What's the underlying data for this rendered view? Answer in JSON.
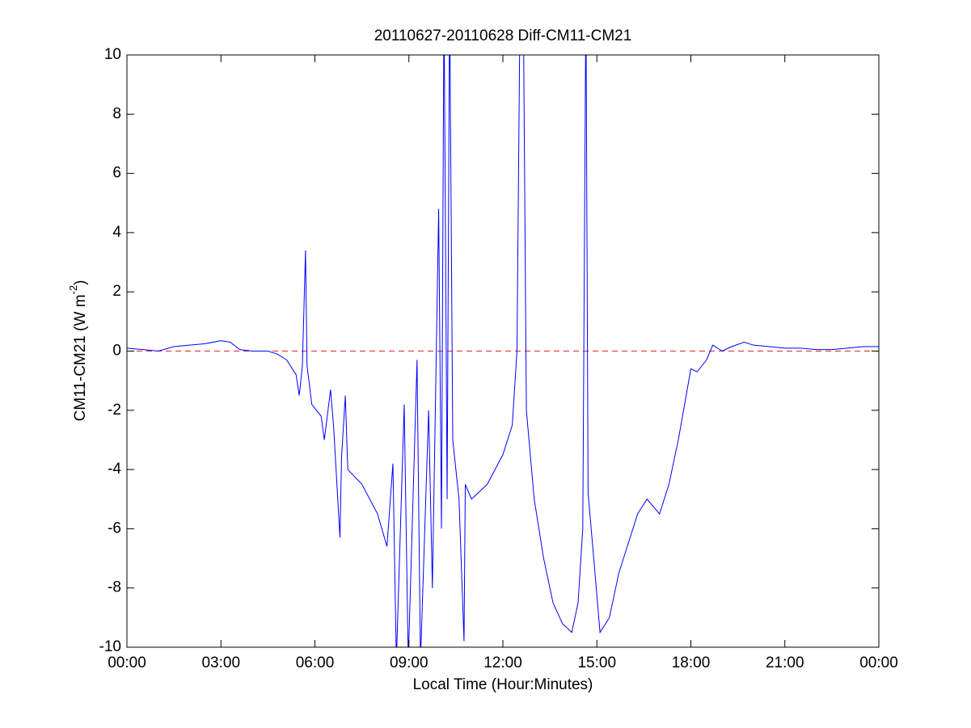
{
  "chart_data": {
    "type": "line",
    "title": "20110627-20110628 Diff-CM11-CM21",
    "xlabel": "Local Time (Hour:Minutes)",
    "ylabel": {
      "text": "CM11-CM21 (W m",
      "sup": "-2",
      "tail": ")"
    },
    "xlim": [
      0,
      24
    ],
    "xticks": [
      {
        "value": 0,
        "label": "00:00"
      },
      {
        "value": 3,
        "label": "03:00"
      },
      {
        "value": 6,
        "label": "06:00"
      },
      {
        "value": 9,
        "label": "09:00"
      },
      {
        "value": 12,
        "label": "12:00"
      },
      {
        "value": 15,
        "label": "15:00"
      },
      {
        "value": 18,
        "label": "18:00"
      },
      {
        "value": 21,
        "label": "21:00"
      },
      {
        "value": 24,
        "label": "00:00"
      }
    ],
    "ylim": [
      -10,
      10
    ],
    "yticks": [
      -10,
      -8,
      -6,
      -4,
      -2,
      0,
      2,
      4,
      6,
      8,
      10
    ],
    "reference_line": {
      "value": 0,
      "color": "#d62728"
    },
    "x": [
      0,
      0.5,
      1,
      1.5,
      2,
      2.5,
      3,
      3.3,
      3.6,
      4,
      4.5,
      4.8,
      5.1,
      5.4,
      5.5,
      5.6,
      5.7,
      5.75,
      5.9,
      6.2,
      6.3,
      6.5,
      6.6,
      6.8,
      6.85,
      6.97,
      7.05,
      7.5,
      8.0,
      8.3,
      8.49,
      8.6,
      8.85,
      8.98,
      9.26,
      9.37,
      9.63,
      9.75,
      9.95,
      10.04,
      10.12,
      10.22,
      10.3,
      10.4,
      10.6,
      10.76,
      10.8,
      11,
      11.5,
      12,
      12.3,
      12.45,
      12.55,
      12.65,
      12.75,
      13,
      13.3,
      13.6,
      13.9,
      14.2,
      14.4,
      14.55,
      14.65,
      14.72,
      14.9,
      15.1,
      15.4,
      15.7,
      16,
      16.3,
      16.6,
      17,
      17.3,
      17.6,
      17.85,
      18,
      18.2,
      18.5,
      18.7,
      19,
      19.3,
      19.7,
      20,
      20.5,
      21,
      21.5,
      22,
      22.5,
      23,
      23.5,
      24
    ],
    "series": [
      {
        "color": "#0000ff",
        "values": [
          0.1,
          0.05,
          0.0,
          0.15,
          0.2,
          0.25,
          0.35,
          0.3,
          0.05,
          0.0,
          0.0,
          -0.1,
          -0.3,
          -0.8,
          -1.5,
          -0.5,
          3.4,
          -0.5,
          -1.8,
          -2.2,
          -3.0,
          -1.3,
          -2.6,
          -6.3,
          -3.6,
          -1.5,
          -4.0,
          -4.5,
          -5.5,
          -6.6,
          -3.8,
          -10.5,
          -1.8,
          -10.5,
          -0.3,
          -10.5,
          -2,
          -8,
          4.8,
          -6,
          12,
          -5,
          12,
          -3,
          -5,
          -9.8,
          -4.5,
          -5,
          -4.5,
          -3.5,
          -2.5,
          0,
          12,
          12,
          -2,
          -5,
          -7,
          -8.5,
          -9.2,
          -9.5,
          -8.5,
          -6,
          12,
          -4.8,
          -7,
          -9.5,
          -9,
          -7.5,
          -6.5,
          -5.5,
          -5,
          -5.5,
          -4.5,
          -3,
          -1.5,
          -0.6,
          -0.7,
          -0.3,
          0.2,
          0.0,
          0.15,
          0.3,
          0.2,
          0.15,
          0.1,
          0.1,
          0.05,
          0.05,
          0.1,
          0.15,
          0.15
        ]
      }
    ]
  }
}
